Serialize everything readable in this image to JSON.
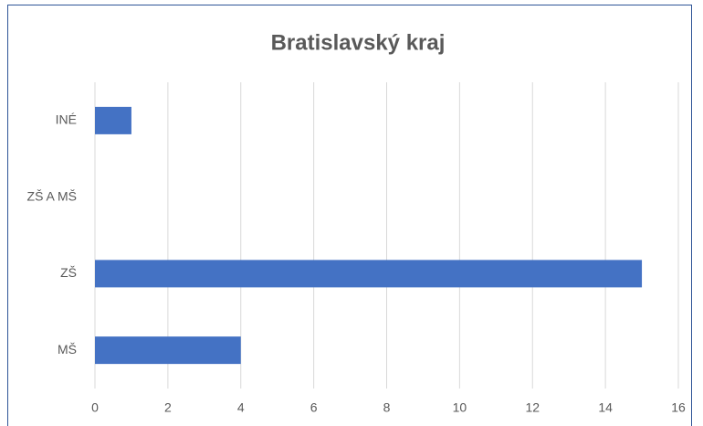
{
  "chart_data": {
    "type": "bar",
    "orientation": "horizontal",
    "title": "Bratislavský kraj",
    "categories": [
      "MŠ",
      "ZŠ",
      "ZŠ A MŠ",
      "INÉ"
    ],
    "values": [
      4,
      15,
      0,
      1
    ],
    "color": "#4472c4",
    "xlim": [
      0,
      16
    ],
    "xticks": [
      0,
      2,
      4,
      6,
      8,
      10,
      12,
      14,
      16
    ],
    "grid": true
  }
}
